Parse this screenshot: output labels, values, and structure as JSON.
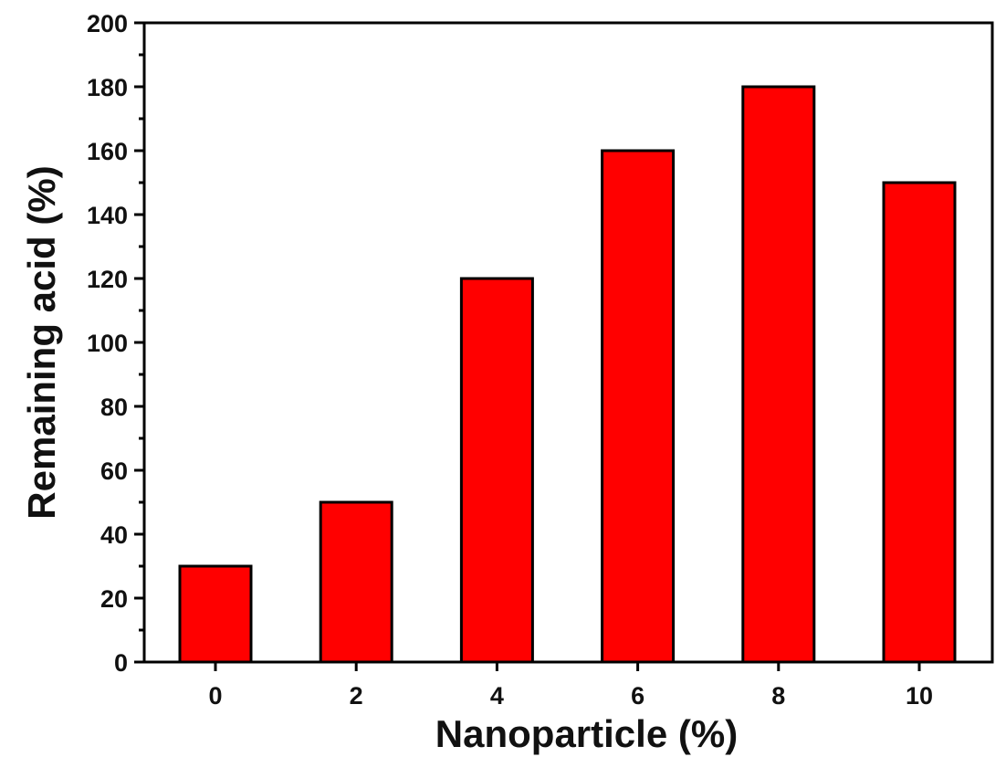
{
  "chart_data": {
    "type": "bar",
    "categories": [
      "0",
      "2",
      "4",
      "6",
      "8",
      "10"
    ],
    "values": [
      30,
      50,
      120,
      160,
      180,
      150
    ],
    "title": "",
    "xlabel": "Nanoparticle (%)",
    "ylabel": "Remaining acid (%)",
    "ylim": [
      0,
      200
    ],
    "yticks": [
      "0",
      "20",
      "40",
      "60",
      "80",
      "100",
      "120",
      "140",
      "160",
      "180",
      "200"
    ],
    "bar_color": "#ff0000",
    "grid": false,
    "legend": "none"
  }
}
